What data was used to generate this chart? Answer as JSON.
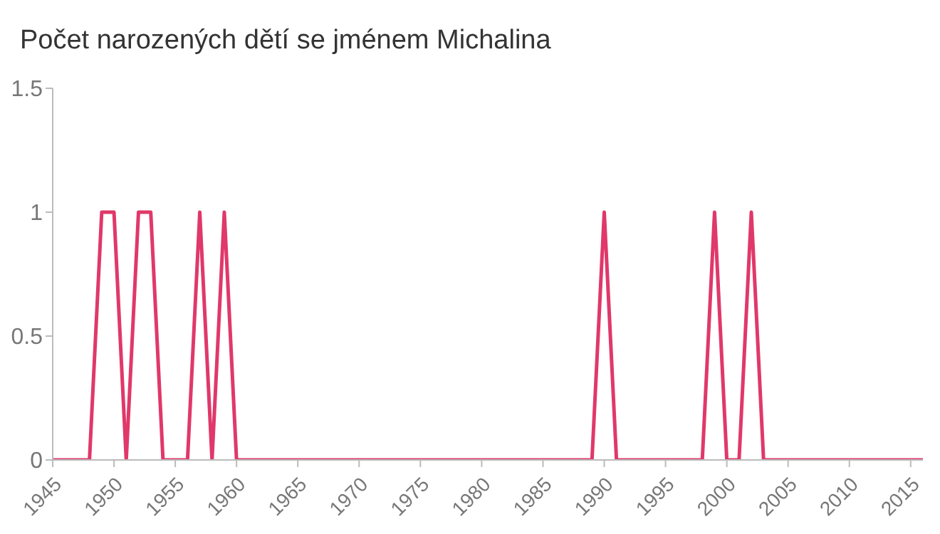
{
  "chart_data": {
    "type": "line",
    "title": "Počet narozených dětí se jménem Michalina",
    "x": [
      1945,
      1946,
      1947,
      1948,
      1949,
      1950,
      1951,
      1952,
      1953,
      1954,
      1955,
      1956,
      1957,
      1958,
      1959,
      1960,
      1961,
      1962,
      1963,
      1964,
      1965,
      1966,
      1967,
      1968,
      1969,
      1970,
      1971,
      1972,
      1973,
      1974,
      1975,
      1976,
      1977,
      1978,
      1979,
      1980,
      1981,
      1982,
      1983,
      1984,
      1985,
      1986,
      1987,
      1988,
      1989,
      1990,
      1991,
      1992,
      1993,
      1994,
      1995,
      1996,
      1997,
      1998,
      1999,
      2000,
      2001,
      2002,
      2003,
      2004,
      2005,
      2006,
      2007,
      2008,
      2009,
      2010,
      2011,
      2012,
      2013,
      2014,
      2015,
      2016
    ],
    "series": [
      {
        "color": "#e0386a",
        "values": [
          0,
          0,
          0,
          0,
          1,
          1,
          0,
          1,
          1,
          0,
          0,
          0,
          1,
          0,
          1,
          0,
          0,
          0,
          0,
          0,
          0,
          0,
          0,
          0,
          0,
          0,
          0,
          0,
          0,
          0,
          0,
          0,
          0,
          0,
          0,
          0,
          0,
          0,
          0,
          0,
          0,
          0,
          0,
          0,
          0,
          1,
          0,
          0,
          0,
          0,
          0,
          0,
          0,
          0,
          1,
          0,
          0,
          1,
          0,
          0,
          0,
          0,
          0,
          0,
          0,
          0,
          0,
          0,
          0,
          0,
          0,
          0
        ]
      }
    ],
    "xlim": [
      1945,
      2016
    ],
    "xticks": [
      1945,
      1950,
      1955,
      1960,
      1965,
      1970,
      1975,
      1980,
      1985,
      1990,
      1995,
      2000,
      2005,
      2010,
      2015
    ],
    "ylim": [
      0,
      1.5
    ],
    "yticks": [
      0,
      0.5,
      1,
      1.5
    ],
    "grid": false,
    "legend": false,
    "marker": "none",
    "line_style": "solid"
  }
}
